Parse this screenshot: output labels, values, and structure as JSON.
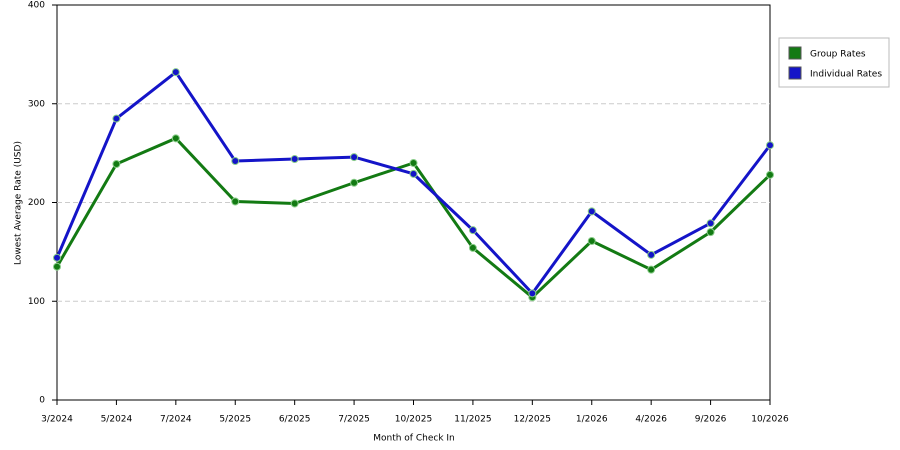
{
  "chart_data": {
    "type": "line",
    "x_label": "Month of Check In",
    "y_label": "Lowest Average Rate (USD)",
    "categories": [
      "3/2024",
      "5/2024",
      "7/2024",
      "5/2025",
      "6/2025",
      "7/2025",
      "10/2025",
      "11/2025",
      "12/2025",
      "1/2026",
      "4/2026",
      "9/2026",
      "10/2026"
    ],
    "series": [
      {
        "name": "Group Rates",
        "color": "#137a13",
        "values": [
          135,
          239,
          265,
          201,
          199,
          220,
          240,
          154,
          104,
          161,
          132,
          170,
          228
        ]
      },
      {
        "name": "Individual Rates",
        "color": "#1414c8",
        "values": [
          144,
          285,
          332,
          242,
          244,
          246,
          229,
          172,
          108,
          191,
          147,
          179,
          258
        ]
      }
    ],
    "ylim": [
      0,
      400
    ],
    "yticks": [
      0,
      100,
      200,
      300,
      400
    ],
    "grid": true,
    "legend": "right"
  }
}
